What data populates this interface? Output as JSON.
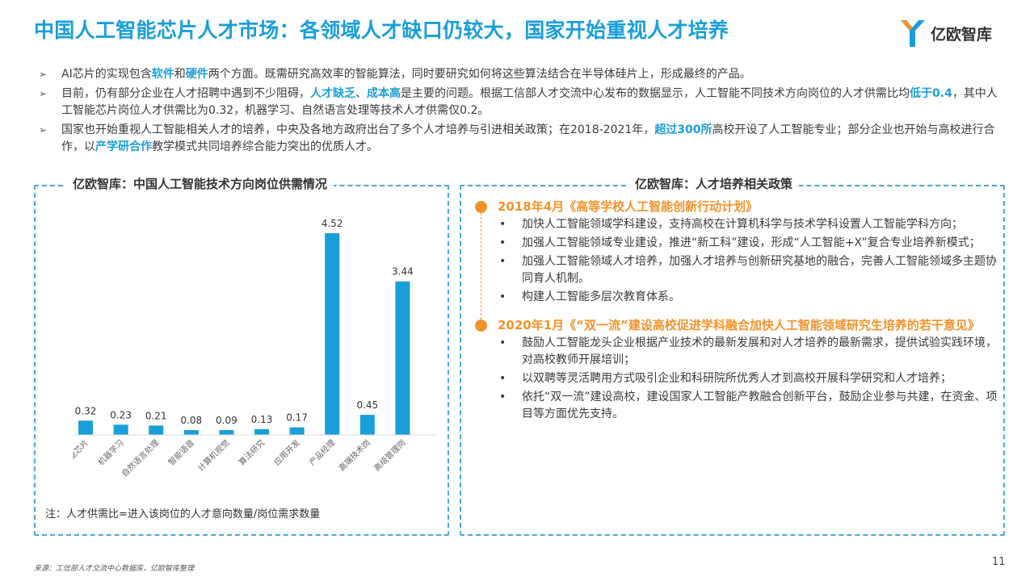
{
  "title": "中国人工智能芯片人才市场：各领域人才缺口仍较大，国家开始重视人才培养",
  "logo_text": "亿欧智库",
  "colors": {
    "accent": "#1a9ed9",
    "orange": "#f0932b",
    "bar": "#1a9ed9"
  },
  "bullets": [
    {
      "parts": [
        "AI芯片的实现包含",
        "软件",
        "和",
        "硬件",
        "两个方面。既需研究高效率的智能算法，同时要研究如何将这些算法结合在半导体硅片上，形成最终的产品。"
      ]
    },
    {
      "parts": [
        "目前，仍有部分企业在人才招聘中遇到不少阻碍，",
        "人才缺乏",
        "、",
        "成本高",
        "是主要的问题。根据工信部人才交流中心发布的数据显示，人工智能不同技术方向岗位的人才供需比均",
        "低于0.4",
        "，其中人工智能芯片岗位人才供需比为0.32，机器学习、自然语言处理等技术人才供需仅0.2。"
      ]
    },
    {
      "parts": [
        "国家也开始重视人工智能相关人才的培养，中央及各地方政府出台了多个人才培养与引进相关政策；在2018-2021年，",
        "超过300所",
        "高校开设了人工智能专业；部分企业也开始与高校进行合作，以",
        "产学研合作",
        "教学模式共同培养综合能力突出的优质人才。"
      ]
    }
  ],
  "left_panel_title": "亿欧智库：中国人工智能技术方向岗位供需情况",
  "right_panel_title": "亿欧智库：人才培养相关政策",
  "note": "注：人才供需比=进入该岗位的人才意向数量/岗位需求数量",
  "chart_data": {
    "type": "bar",
    "title": "亿欧智库：中国人工智能技术方向岗位供需情况",
    "categories": [
      "人工智能芯片",
      "机器学习",
      "自然语言处理",
      "智能语音",
      "计算机视觉",
      "算法研究",
      "应用开发",
      "产品经理",
      "高端技术岗",
      "高级管理岗"
    ],
    "values": [
      0.32,
      0.23,
      0.21,
      0.08,
      0.09,
      0.13,
      0.17,
      4.52,
      0.45,
      3.44
    ],
    "value_labels": [
      "0.32",
      "0.23",
      "0.21",
      "0.08",
      "0.09",
      "0.13",
      "0.17",
      "4.52",
      "0.45",
      "3.44"
    ],
    "ylim": [
      0,
      4.52
    ],
    "xlabel": "",
    "ylabel": "",
    "grid": false
  },
  "policies": [
    {
      "head": "2018年4月《高等学校人工智能创新行动计划》",
      "items": [
        "加快人工智能领域学科建设，支持高校在计算机科学与技术学科设置人工智能学科方向；",
        "加强人工智能领域专业建设，推进“新工科”建设，形成“人工智能+X”复合专业培养新模式；",
        "加强人工智能领域人才培养，加强人才培养与创新研究基地的融合，完善人工智能领域多主题协同育人机制。",
        "构建人工智能多层次教育体系。"
      ]
    },
    {
      "head": "2020年1月《“双一流”建设高校促进学科融合加快人工智能领域研究生培养的若干意见》",
      "items": [
        "鼓励人工智能龙头企业根据产业技术的最新发展和对人才培养的最新需求，提供试验实践环境，对高校教师开展培训；",
        "以双聘等灵活聘用方式吸引企业和科研院所优秀人才到高校开展科学研究和人才培养；",
        "依托“双一流”建设高校，建设国家人工智能产教融合创新平台，鼓励企业参与共建，在资金、项目等方面优先支持。"
      ]
    }
  ],
  "source": "来源：工信部人才交流中心数据库，亿欧智库整理",
  "page_number": "11"
}
